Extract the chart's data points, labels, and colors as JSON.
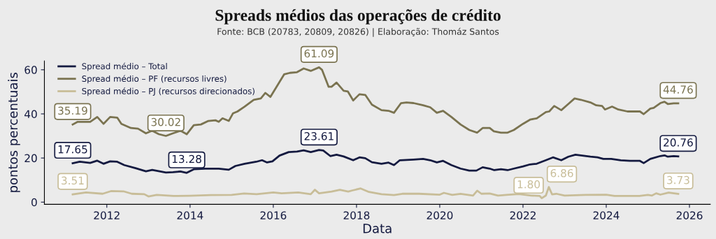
{
  "chart_data": {
    "type": "line",
    "title": "Spreads médios das operações de crédito",
    "subtitle": "Fonte: BCB (20783, 20809, 20826) | Elaboração: Thomáz Santos",
    "xlabel": "Data",
    "ylabel": "pontos percentuais",
    "xlim": [
      2010.5,
      2026.5
    ],
    "xticks": [
      2012,
      2014,
      2016,
      2018,
      2020,
      2022,
      2024,
      2026
    ],
    "ylim": [
      -1,
      64
    ],
    "yticks": [
      0,
      20,
      40,
      60
    ],
    "grid": false,
    "legend": "top left",
    "marker": "none",
    "line_style": "solid",
    "series": [
      {
        "name": "Spread médio – Total",
        "color": "#141a40",
        "x": [
          2011.18,
          2011.35,
          2011.6,
          2011.77,
          2011.92,
          2012.08,
          2012.25,
          2012.42,
          2012.69,
          2012.94,
          2013.09,
          2013.42,
          2013.59,
          2013.77,
          2013.92,
          2014.09,
          2014.36,
          2014.69,
          2014.93,
          2015.09,
          2015.31,
          2015.59,
          2015.73,
          2015.85,
          2015.98,
          2016.15,
          2016.37,
          2016.57,
          2016.73,
          2016.9,
          2017.1,
          2017.2,
          2017.37,
          2017.52,
          2017.69,
          2017.92,
          2018.07,
          2018.21,
          2018.37,
          2018.6,
          2018.77,
          2018.9,
          2019.04,
          2019.37,
          2019.6,
          2019.77,
          2019.93,
          2020.08,
          2020.28,
          2020.5,
          2020.71,
          2020.88,
          2021.03,
          2021.2,
          2021.31,
          2021.47,
          2021.63,
          2021.78,
          2022.0,
          2022.17,
          2022.33,
          2022.55,
          2022.72,
          2022.92,
          2023.09,
          2023.26,
          2023.39,
          2023.62,
          2023.79,
          2023.93,
          2024.12,
          2024.35,
          2024.57,
          2024.81,
          2024.9,
          2025.06,
          2025.3,
          2025.4,
          2025.48,
          2025.62,
          2025.73
        ],
        "values": [
          17.65,
          18.3,
          17.8,
          18.8,
          17.4,
          18.5,
          18.3,
          16.8,
          15.4,
          14.0,
          14.6,
          13.4,
          13.6,
          13.9,
          13.28,
          14.9,
          15.2,
          15.2,
          14.7,
          16.4,
          17.4,
          18.3,
          19.0,
          18.0,
          18.5,
          21.1,
          22.7,
          22.9,
          23.5,
          22.7,
          23.61,
          23.4,
          20.9,
          21.5,
          20.7,
          19.0,
          20.3,
          19.9,
          18.1,
          17.4,
          17.9,
          16.8,
          19.0,
          19.3,
          19.6,
          19.0,
          18.0,
          18.7,
          16.8,
          15.2,
          14.3,
          14.3,
          15.8,
          15.2,
          14.5,
          14.9,
          14.5,
          15.2,
          16.2,
          17.1,
          17.4,
          19.0,
          20.3,
          19.0,
          20.6,
          21.5,
          21.2,
          20.6,
          20.3,
          19.6,
          19.6,
          19.0,
          18.7,
          18.7,
          17.7,
          19.6,
          20.9,
          21.2,
          20.6,
          20.9,
          20.76
        ]
      },
      {
        "name": "Spread médio – PF (recursos livres)",
        "color": "#7a7350",
        "x": [
          2011.18,
          2011.3,
          2011.6,
          2011.77,
          2011.92,
          2012.08,
          2012.25,
          2012.35,
          2012.58,
          2012.75,
          2012.94,
          2013.09,
          2013.25,
          2013.42,
          2013.59,
          2013.77,
          2013.92,
          2014.09,
          2014.26,
          2014.44,
          2014.61,
          2014.69,
          2014.78,
          2014.93,
          2015.03,
          2015.14,
          2015.31,
          2015.53,
          2015.7,
          2015.81,
          2015.93,
          2016.26,
          2016.4,
          2016.57,
          2016.73,
          2016.9,
          2017.1,
          2017.17,
          2017.33,
          2017.4,
          2017.52,
          2017.69,
          2017.79,
          2017.92,
          2018.07,
          2018.21,
          2018.37,
          2018.6,
          2018.77,
          2018.9,
          2019.07,
          2019.2,
          2019.37,
          2019.6,
          2019.77,
          2019.93,
          2020.08,
          2020.28,
          2020.5,
          2020.71,
          2020.9,
          2021.03,
          2021.2,
          2021.3,
          2021.47,
          2021.63,
          2021.78,
          2022.0,
          2022.17,
          2022.33,
          2022.55,
          2022.63,
          2022.75,
          2022.92,
          2023.09,
          2023.24,
          2023.39,
          2023.62,
          2023.76,
          2023.9,
          2023.97,
          2024.14,
          2024.29,
          2024.51,
          2024.68,
          2024.81,
          2024.9,
          2025.06,
          2025.14,
          2025.3,
          2025.4,
          2025.48,
          2025.62,
          2025.73
        ],
        "values": [
          35.19,
          36.4,
          36.4,
          38.6,
          35.5,
          38.6,
          38.3,
          35.5,
          33.6,
          33.3,
          31.2,
          32.4,
          30.8,
          30.02,
          31.2,
          32.4,
          30.8,
          34.9,
          35.2,
          36.8,
          37.1,
          36.4,
          38.0,
          36.8,
          40.2,
          41.1,
          43.3,
          46.4,
          47.0,
          49.5,
          47.7,
          57.9,
          58.6,
          58.9,
          60.6,
          59.5,
          61.09,
          60.0,
          52.3,
          52.3,
          54.2,
          50.5,
          50.2,
          46.1,
          48.9,
          48.6,
          44.2,
          41.7,
          41.4,
          40.5,
          44.9,
          45.2,
          44.9,
          43.9,
          43.0,
          40.5,
          41.4,
          38.6,
          35.2,
          32.7,
          31.5,
          33.6,
          33.6,
          32.1,
          31.5,
          31.5,
          32.7,
          35.5,
          37.4,
          38.0,
          40.8,
          41.1,
          43.6,
          41.7,
          44.5,
          47.0,
          46.4,
          45.2,
          43.9,
          43.6,
          42.0,
          43.3,
          42.0,
          41.1,
          41.1,
          41.1,
          39.9,
          42.4,
          42.7,
          44.9,
          45.5,
          44.5,
          44.8,
          44.76
        ]
      },
      {
        "name": "Spread médio – PJ (recursos direcionados)",
        "color": "#c8bd98",
        "x": [
          2011.18,
          2011.5,
          2011.9,
          2012.1,
          2012.4,
          2012.6,
          2012.9,
          2013.0,
          2013.2,
          2013.6,
          2014.0,
          2014.5,
          2015.0,
          2015.3,
          2015.6,
          2016.0,
          2016.2,
          2016.6,
          2016.9,
          2017.0,
          2017.1,
          2017.4,
          2017.6,
          2017.8,
          2017.9,
          2018.1,
          2018.3,
          2018.6,
          2018.9,
          2019.1,
          2019.5,
          2020.0,
          2020.1,
          2020.3,
          2020.5,
          2020.8,
          2020.9,
          2021.0,
          2021.2,
          2021.4,
          2021.6,
          2021.9,
          2022.2,
          2022.4,
          2022.45,
          2022.55,
          2022.62,
          2022.7,
          2022.8,
          2023.0,
          2023.5,
          2024.0,
          2024.2,
          2024.8,
          2025.0,
          2025.1,
          2025.2,
          2025.3,
          2025.5,
          2025.73
        ],
        "values": [
          3.51,
          4.4,
          3.8,
          5.0,
          4.9,
          3.8,
          3.6,
          2.6,
          3.3,
          2.8,
          2.9,
          3.2,
          3.3,
          3.9,
          3.6,
          4.4,
          4.0,
          4.4,
          3.6,
          5.6,
          4.0,
          4.8,
          5.6,
          4.8,
          5.3,
          6.2,
          4.6,
          3.6,
          3.2,
          3.8,
          3.8,
          3.4,
          4.2,
          3.3,
          3.8,
          3.0,
          5.2,
          3.8,
          3.9,
          3.0,
          3.3,
          3.7,
          3.0,
          2.8,
          1.8,
          3.0,
          6.86,
          3.5,
          3.8,
          3.0,
          3.3,
          3.4,
          2.8,
          2.8,
          3.3,
          3.0,
          4.0,
          3.4,
          4.3,
          3.73
        ]
      }
    ],
    "annotations": [
      {
        "text": "17.65",
        "x": 2011.18,
        "y": 17.65
      },
      {
        "text": "13.28",
        "x": 2013.92,
        "y": 13.28
      },
      {
        "text": "23.61",
        "x": 2017.1,
        "y": 23.61
      },
      {
        "text": "20.76",
        "x": 2025.73,
        "y": 20.76
      },
      {
        "text": "35.19",
        "x": 2011.18,
        "y": 35.19
      },
      {
        "text": "30.02",
        "x": 2013.42,
        "y": 30.02
      },
      {
        "text": "61.09",
        "x": 2017.1,
        "y": 61.09
      },
      {
        "text": "44.76",
        "x": 2025.73,
        "y": 44.76
      },
      {
        "text": "3.51",
        "x": 2011.18,
        "y": 3.51
      },
      {
        "text": "1.80",
        "x": 2022.45,
        "y": 1.8
      },
      {
        "text": "6.86",
        "x": 2022.62,
        "y": 6.86
      },
      {
        "text": "3.73",
        "x": 2025.73,
        "y": 3.73
      }
    ]
  }
}
